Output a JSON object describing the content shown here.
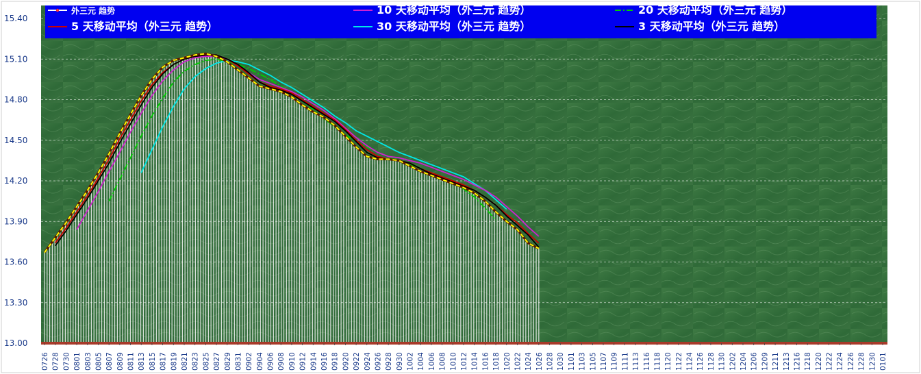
{
  "chart_data": {
    "type": "line",
    "title": "",
    "xlabel": "",
    "ylabel": "",
    "ylim": [
      13.0,
      15.4
    ],
    "yticks": [
      "13.00",
      "13.30",
      "13.60",
      "13.90",
      "14.20",
      "14.50",
      "14.80",
      "15.10",
      "15.40"
    ],
    "grid": true,
    "legend_position": "top",
    "x_tick_labels": [
      "0726",
      "0728",
      "0730",
      "0801",
      "0803",
      "0805",
      "0807",
      "0809",
      "0811",
      "0813",
      "0815",
      "0817",
      "0819",
      "0821",
      "0823",
      "0825",
      "0827",
      "0829",
      "0831",
      "0902",
      "0904",
      "0906",
      "0908",
      "0910",
      "0912",
      "0914",
      "0916",
      "0918",
      "0920",
      "0922",
      "0924",
      "0926",
      "0928",
      "0930",
      "1002",
      "1004",
      "1006",
      "1008",
      "1010",
      "1012",
      "1014",
      "1016",
      "1018",
      "1020",
      "1022",
      "1024",
      "1026",
      "1028",
      "1030",
      "1101",
      "1103",
      "1105",
      "1107",
      "1109",
      "1111",
      "1113",
      "1116",
      "1118",
      "1120",
      "1122",
      "1124",
      "1126",
      "1128",
      "1130",
      "1202",
      "1204",
      "1206",
      "1209",
      "1211",
      "1213",
      "1216",
      "1218",
      "1220",
      "1222",
      "1224",
      "1226",
      "1228",
      "1230",
      "0101"
    ],
    "series": [
      {
        "name": "外三元  趋势",
        "color": "#ffff00",
        "style": "dashed",
        "bar_fill": true,
        "start_index": 0,
        "values": [
          13.67,
          13.78,
          13.89,
          14.01,
          14.13,
          14.26,
          14.4,
          14.55,
          14.69,
          14.83,
          14.95,
          15.04,
          15.09,
          15.11,
          15.13,
          15.14,
          15.12,
          15.08,
          15.02,
          14.96,
          14.9,
          14.88,
          14.86,
          14.82,
          14.76,
          14.71,
          14.67,
          14.61,
          14.53,
          14.45,
          14.38,
          14.36,
          14.36,
          14.35,
          14.31,
          14.27,
          14.24,
          14.21,
          14.18,
          14.15,
          14.11,
          14.05,
          13.97,
          13.9,
          13.84,
          13.74,
          13.7
        ]
      },
      {
        "name": "5 天移动平均（外三元  趋势）",
        "color": "#cc0000",
        "style": "solid",
        "start_index": 1,
        "values": [
          13.74,
          13.85,
          13.97,
          14.09,
          14.22,
          14.36,
          14.51,
          14.65,
          14.79,
          14.91,
          15.0,
          15.06,
          15.1,
          15.12,
          15.13,
          15.13,
          15.1,
          15.05,
          14.99,
          14.93,
          14.9,
          14.88,
          14.85,
          14.8,
          14.75,
          14.7,
          14.65,
          14.58,
          14.5,
          14.43,
          14.38,
          14.36,
          14.35,
          14.33,
          14.29,
          14.26,
          14.23,
          14.2,
          14.17,
          14.13,
          14.08,
          14.02,
          13.95,
          13.89,
          13.81,
          13.74
        ]
      },
      {
        "name": "10 天移动平均（外三元  趋势）",
        "color": "#d020d0",
        "style": "solid",
        "start_index": 3,
        "values": [
          13.84,
          13.98,
          14.12,
          14.27,
          14.41,
          14.56,
          14.7,
          14.83,
          14.94,
          15.02,
          15.08,
          15.11,
          15.12,
          15.12,
          15.1,
          15.05,
          15.0,
          14.95,
          14.92,
          14.89,
          14.86,
          14.82,
          14.77,
          14.72,
          14.66,
          14.59,
          14.52,
          14.46,
          14.41,
          14.38,
          14.37,
          14.35,
          14.33,
          14.3,
          14.27,
          14.24,
          14.21,
          14.17,
          14.13,
          14.08,
          14.01,
          13.94,
          13.86,
          13.79
        ]
      },
      {
        "name": "20 天移动平均（外三元  趋势）",
        "color": "#00d000",
        "style": "dashdot",
        "start_index": 6,
        "values": [
          14.05,
          14.21,
          14.37,
          14.53,
          14.68,
          14.81,
          14.93,
          15.01,
          15.06,
          15.09,
          15.1,
          15.08,
          15.06,
          15.03,
          14.99,
          14.95,
          14.9,
          14.85,
          14.79,
          14.73,
          14.66,
          14.6,
          14.54,
          14.49,
          14.45,
          14.41,
          14.38,
          14.35,
          14.32,
          14.29,
          14.26,
          14.23,
          14.19,
          14.14,
          14.08,
          14.0,
          13.91
        ]
      },
      {
        "name": "30 天移动平均（外三元  趋势）",
        "color": "#00e8e8",
        "style": "solid",
        "start_index": 9,
        "values": [
          14.26,
          14.43,
          14.6,
          14.75,
          14.88,
          14.97,
          15.03,
          15.07,
          15.09,
          15.08,
          15.06,
          15.02,
          14.98,
          14.93,
          14.89,
          14.84,
          14.79,
          14.74,
          14.68,
          14.63,
          14.57,
          14.53,
          14.49,
          14.45,
          14.41,
          14.38,
          14.35,
          14.32,
          14.29,
          14.26,
          14.23,
          14.18,
          14.13,
          14.06,
          13.99
        ]
      },
      {
        "name": "3 天移动平均（外三元  趋势）",
        "color": "#000000",
        "style": "solid",
        "start_index": 1,
        "values": [
          13.72,
          13.83,
          13.95,
          14.07,
          14.2,
          14.33,
          14.48,
          14.62,
          14.76,
          14.89,
          14.99,
          15.06,
          15.1,
          15.12,
          15.13,
          15.13,
          15.1,
          15.06,
          15.0,
          14.93,
          14.89,
          14.87,
          14.84,
          14.79,
          14.74,
          14.69,
          14.64,
          14.57,
          14.49,
          14.41,
          14.37,
          14.36,
          14.35,
          14.33,
          14.29,
          14.25,
          14.22,
          14.19,
          14.16,
          14.13,
          14.08,
          14.02,
          13.94,
          13.87,
          13.8,
          13.71
        ]
      }
    ]
  }
}
